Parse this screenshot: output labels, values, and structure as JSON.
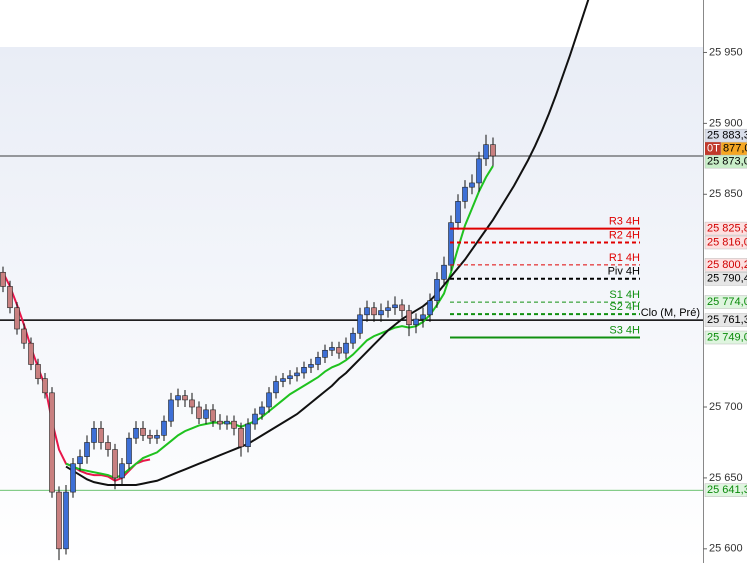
{
  "chart_data": {
    "type": "candlestick",
    "ylim": [
      25590,
      25987
    ],
    "yticks": [
      {
        "value": 25950,
        "label": "25 950"
      },
      {
        "value": 25900,
        "label": "25 900"
      },
      {
        "value": 25850,
        "label": "25 850"
      },
      {
        "value": 25700,
        "label": "25 700"
      },
      {
        "value": 25650,
        "label": "25 650"
      },
      {
        "value": 25600,
        "label": "25 600"
      }
    ],
    "up_color": "#3d6fd6",
    "down_color": "#c98080",
    "open": [
      25795,
      25785,
      25770,
      25755,
      25745,
      25730,
      25720,
      25710,
      25640,
      25600,
      25640,
      25660,
      25665,
      25675,
      25685,
      25675,
      25670,
      25650,
      25660,
      25678,
      25685,
      25680,
      25678,
      25680,
      25690,
      25705,
      25708,
      25705,
      25700,
      25692,
      25698,
      25690,
      25688,
      25690,
      25685,
      25672,
      25688,
      25695,
      25700,
      25710,
      25718,
      25720,
      25722,
      25724,
      25728,
      25730,
      25735,
      25740,
      25742,
      25738,
      25745,
      25752,
      25765,
      25770,
      25765,
      25768,
      25770,
      25772,
      25768,
      25758,
      25762,
      25765,
      25775,
      25790,
      25800,
      25830,
      25845,
      25855,
      25858,
      25875,
      25885,
      null,
      null,
      null,
      null,
      null,
      null,
      null,
      null,
      null,
      null,
      null,
      null,
      null,
      null
    ],
    "high": [
      25799,
      25789,
      25774,
      25759,
      25749,
      25734,
      25724,
      25714,
      25644,
      25645,
      25664,
      25670,
      25680,
      25690,
      25690,
      25680,
      25674,
      25664,
      25682,
      25690,
      25690,
      25684,
      25684,
      25694,
      25710,
      25713,
      25712,
      25710,
      25704,
      25702,
      25702,
      25695,
      25694,
      25694,
      25689,
      25692,
      25699,
      25704,
      25714,
      25722,
      25724,
      25726,
      25728,
      25732,
      25734,
      25739,
      25744,
      25746,
      25746,
      25749,
      25756,
      25770,
      25775,
      25774,
      25773,
      25775,
      25778,
      25776,
      25772,
      25766,
      25770,
      25780,
      25795,
      25806,
      25835,
      25850,
      25860,
      25864,
      25880,
      25892,
      25890,
      null,
      null,
      null,
      null,
      null,
      null,
      null,
      null,
      null,
      null,
      null,
      null,
      null,
      null
    ],
    "low": [
      25781,
      25766,
      25751,
      25741,
      25726,
      25716,
      25706,
      25636,
      25592,
      25596,
      25636,
      25655,
      25660,
      25670,
      25670,
      25665,
      25642,
      25645,
      25656,
      25674,
      25676,
      25674,
      25674,
      25676,
      25686,
      25700,
      25700,
      25695,
      25688,
      25688,
      25686,
      25684,
      25684,
      25680,
      25665,
      25668,
      25684,
      25691,
      25696,
      25706,
      25714,
      25716,
      25718,
      25720,
      25724,
      25726,
      25731,
      25736,
      25734,
      25734,
      25741,
      25748,
      25760,
      25760,
      25760,
      25763,
      25765,
      25763,
      25750,
      25752,
      25756,
      25760,
      25770,
      25785,
      25796,
      25825,
      25840,
      25850,
      25852,
      25870,
      25870,
      null,
      null,
      null,
      null,
      null,
      null,
      null,
      null,
      null,
      null,
      null,
      null,
      null,
      null
    ],
    "close": [
      25785,
      25770,
      25755,
      25745,
      25730,
      25720,
      25710,
      25640,
      25600,
      25640,
      25660,
      25665,
      25675,
      25685,
      25675,
      25670,
      25650,
      25660,
      25678,
      25685,
      25680,
      25678,
      25680,
      25690,
      25705,
      25708,
      25705,
      25700,
      25692,
      25698,
      25690,
      25688,
      25690,
      25685,
      25672,
      25688,
      25695,
      25700,
      25710,
      25718,
      25720,
      25722,
      25724,
      25728,
      25730,
      25735,
      25740,
      25742,
      25738,
      25745,
      25752,
      25765,
      25770,
      25765,
      25768,
      25770,
      25772,
      25768,
      25758,
      25762,
      25765,
      25775,
      25790,
      25800,
      25830,
      25845,
      25855,
      25858,
      25875,
      25885,
      25877,
      null,
      null,
      null,
      null,
      null,
      null,
      null,
      null,
      null,
      null,
      null,
      null,
      null,
      null
    ],
    "series": [
      {
        "color": "#e8174a",
        "values": [
          25795,
          25785,
          25772,
          25758,
          25742,
          25728,
          25715,
          25690,
          25670,
          25660,
          25658,
          25655,
          25653,
          25652,
          25652,
          25651,
          25648,
          25650,
          25655,
          25660,
          25662,
          25663,
          null,
          null,
          null,
          null,
          null,
          null,
          null,
          null,
          null,
          null,
          null,
          null,
          null,
          null,
          null,
          null,
          null,
          null,
          null,
          null,
          null,
          null,
          null,
          null,
          null,
          null,
          null,
          null,
          null,
          null,
          null,
          null,
          null,
          null,
          null,
          null,
          null,
          null,
          null,
          null,
          null,
          null,
          null,
          null,
          null,
          null,
          null,
          null,
          null,
          null,
          null,
          null,
          null,
          null,
          null,
          null,
          null,
          null,
          null,
          null,
          null,
          null,
          null
        ]
      },
      {
        "color": "#1fc21f",
        "values": [
          null,
          null,
          null,
          null,
          null,
          null,
          null,
          null,
          null,
          25660,
          25658,
          25656,
          25655,
          25654,
          25653,
          25652,
          25650,
          25652,
          25656,
          25660,
          25664,
          25666,
          25668,
          25672,
          25676,
          25680,
          25683,
          25685,
          25687,
          25688,
          25689,
          25689,
          25689,
          25688,
          25686,
          25688,
          25690,
          25693,
          25697,
          25701,
          25705,
          25709,
          25712,
          25715,
          25718,
          25721,
          25725,
          25728,
          25730,
          25733,
          25737,
          25742,
          25747,
          25750,
          25752,
          25754,
          25756,
          25757,
          25756,
          25757,
          25760,
          25765,
          25772,
          25780,
          25795,
          25812,
          25828,
          25840,
          25852,
          25862,
          25870,
          null,
          null,
          null,
          null,
          null,
          null,
          null,
          null,
          null,
          null,
          null,
          null,
          null,
          null
        ]
      },
      {
        "color": "#111111",
        "values": [
          null,
          null,
          null,
          null,
          null,
          null,
          null,
          null,
          null,
          25658,
          25655,
          25652,
          25649,
          25647,
          25646,
          25645,
          25645,
          25645,
          25645,
          25645,
          25646,
          25647,
          25648,
          25650,
          25652,
          25654,
          25656,
          25658,
          25660,
          25662,
          25664,
          25666,
          25668,
          25670,
          25672,
          25674,
          25677,
          25680,
          25683,
          25686,
          25689,
          25692,
          25695,
          25699,
          25703,
          25707,
          25711,
          25715,
          25720,
          25724,
          25729,
          25734,
          25739,
          25744,
          25749,
          25754,
          25758,
          25762,
          25765,
          25768,
          25771,
          25775,
          25780,
          25786,
          25792,
          25798,
          25804,
          25811,
          25818,
          25825,
          25832,
          25840,
          25848,
          25856,
          25865,
          25874,
          25884,
          25895,
          25907,
          25920,
          25934,
          25948,
          25963,
          25978,
          25993
        ]
      }
    ],
    "levels": [
      {
        "name": "R3 4H",
        "value": 25825.8,
        "color": "#e00000",
        "style": "solid",
        "width": 2
      },
      {
        "name": "R2 4H",
        "value": 25816.0,
        "color": "#e00000",
        "style": "dashed",
        "width": 2
      },
      {
        "name": "R1 4H",
        "value": 25800.2,
        "color": "#e00000",
        "style": "dashed",
        "width": 1
      },
      {
        "name": "Piv 4H",
        "value": 25790.4,
        "color": "#000000",
        "style": "dashed",
        "width": 2
      },
      {
        "name": "S1 4H",
        "value": 25774.0,
        "color": "#109010",
        "style": "dashed",
        "width": 1
      },
      {
        "name": "S2 4H",
        "value": 25765.5,
        "color": "#109010",
        "style": "dashed",
        "width": 2
      },
      {
        "name": "S3 4H",
        "value": 25749.0,
        "color": "#109010",
        "style": "solid",
        "width": 2
      }
    ],
    "lines": [
      {
        "name": "Clo (M, Pré)",
        "value": 25761.3,
        "color": "#000000",
        "width": 1.5
      },
      {
        "value": 25877,
        "color": "#000000",
        "width": 0.8
      },
      {
        "value": 25641.3,
        "color": "#3cb043",
        "width": 0.8
      }
    ],
    "tags": [
      {
        "value": 25883.3,
        "label": "25 883,3",
        "color": "#000000",
        "bg": "#d9deea"
      },
      {
        "value": 25877,
        "label": "877,0",
        "prefix": "0T",
        "color": "#000000",
        "bg": "#f5a623"
      },
      {
        "value": 25873.0,
        "label": "25 873,0",
        "color": "#000000",
        "bg": "#c8eec8"
      },
      {
        "value": 25825.8,
        "label": "25 825,8",
        "color": "#d00000",
        "bg": "#fde0e0"
      },
      {
        "value": 25816.0,
        "label": "25 816,0",
        "color": "#d00000",
        "bg": "#fde0e0"
      },
      {
        "value": 25800.2,
        "label": "25 800,2",
        "color": "#d00000",
        "bg": "#fde0e0"
      },
      {
        "value": 25790.4,
        "label": "25 790,4",
        "color": "#000000",
        "bg": "#e6e6e6"
      },
      {
        "value": 25774.0,
        "label": "25 774,0",
        "color": "#0a8a0a",
        "bg": "#dff5df"
      },
      {
        "value": 25761.3,
        "label": "25 761,3",
        "color": "#000000",
        "bg": "#e6e6e6"
      },
      {
        "value": 25749.0,
        "label": "25 749,0",
        "color": "#0a8a0a",
        "bg": "#dff5df"
      },
      {
        "value": 25641.3,
        "label": "25 641,3",
        "color": "#0a8a0a",
        "bg": "#dff5df"
      }
    ]
  }
}
